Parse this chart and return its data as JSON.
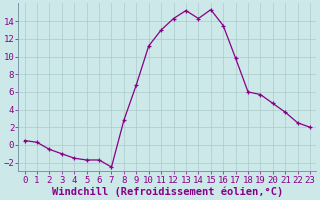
{
  "x": [
    0,
    1,
    2,
    3,
    4,
    5,
    6,
    7,
    8,
    9,
    10,
    11,
    12,
    13,
    14,
    15,
    16,
    17,
    18,
    19,
    20,
    21,
    22,
    23
  ],
  "y": [
    0.5,
    0.3,
    -0.5,
    -1.0,
    -1.5,
    -1.7,
    -1.7,
    -2.5,
    2.8,
    6.8,
    11.2,
    13.0,
    14.3,
    15.2,
    14.3,
    15.3,
    13.5,
    9.8,
    6.0,
    5.7,
    4.7,
    3.7,
    2.5,
    2.0
  ],
  "line_color": "#880088",
  "marker": "+",
  "marker_size": 3,
  "bg_color": "#cce8e8",
  "grid_color": "#aacccc",
  "xlabel": "Windchill (Refroidissement éolien,°C)",
  "xlim": [
    -0.5,
    23.5
  ],
  "ylim": [
    -3,
    16
  ],
  "yticks": [
    -2,
    0,
    2,
    4,
    6,
    8,
    10,
    12,
    14
  ],
  "xticks": [
    0,
    1,
    2,
    3,
    4,
    5,
    6,
    7,
    8,
    9,
    10,
    11,
    12,
    13,
    14,
    15,
    16,
    17,
    18,
    19,
    20,
    21,
    22,
    23
  ],
  "xlabel_fontsize": 7.5,
  "tick_fontsize": 6.5,
  "label_color": "#880088"
}
